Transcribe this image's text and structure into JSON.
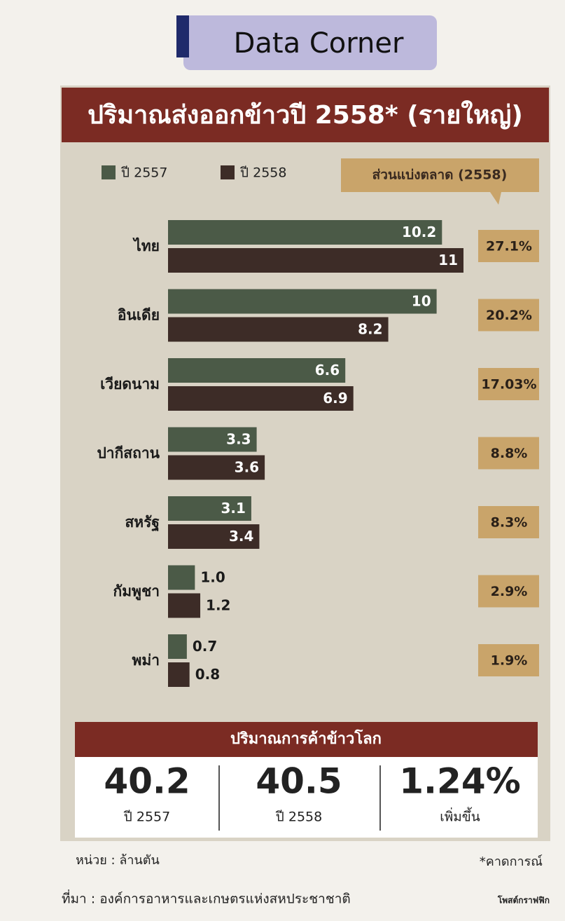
{
  "header": {
    "section": "Data Corner"
  },
  "chart_data": {
    "type": "bar",
    "orientation": "horizontal",
    "title": "ปริมาณส่งออกข้าวปี 2558* (รายใหญ่)",
    "categories": [
      "ไทย",
      "อินเดีย",
      "เวียดนาม",
      "ปากีสถาน",
      "สหรัฐ",
      "กัมพูชา",
      "พม่า"
    ],
    "series": [
      {
        "name": "ปี 2557",
        "color": "#4b5a47",
        "values": [
          10.2,
          10,
          6.6,
          3.3,
          3.1,
          1.0,
          0.7
        ],
        "value_labels": [
          "10.2",
          "10",
          "6.6",
          "3.3",
          "3.1",
          "1.0",
          "0.7"
        ]
      },
      {
        "name": "ปี 2558",
        "color": "#3d2c27",
        "values": [
          11,
          8.2,
          6.9,
          3.6,
          3.4,
          1.2,
          0.8
        ],
        "value_labels": [
          "11",
          "8.2",
          "6.9",
          "3.6",
          "3.4",
          "1.2",
          "0.8"
        ]
      }
    ],
    "unit": "หน่วย : ล้านตัน",
    "note": "*คาดการณ์"
  },
  "market_share": {
    "title": "ส่วนแบ่งตลาด (2558)",
    "values": [
      27.1,
      20.2,
      17.03,
      8.8,
      8.3,
      2.9,
      1.9
    ],
    "value_labels": [
      "27.1%",
      "20.2%",
      "17.03%",
      "8.8%",
      "8.3%",
      "2.9%",
      "1.9%"
    ]
  },
  "summary": {
    "title": "ปริมาณการค้าข้าวโลก",
    "values": [
      40.2,
      40.5,
      1.24
    ],
    "value_labels": [
      "40.2",
      "40.5",
      "1.24%"
    ],
    "labels": [
      "ปี 2557",
      "ปี 2558",
      "เพิ่มขึ้น"
    ]
  },
  "footer": {
    "source": "ที่มา : องค์การอาหารและเกษตรแห่งสหประชาชาติ",
    "credit": "โพสต์กราฟฟิก"
  }
}
